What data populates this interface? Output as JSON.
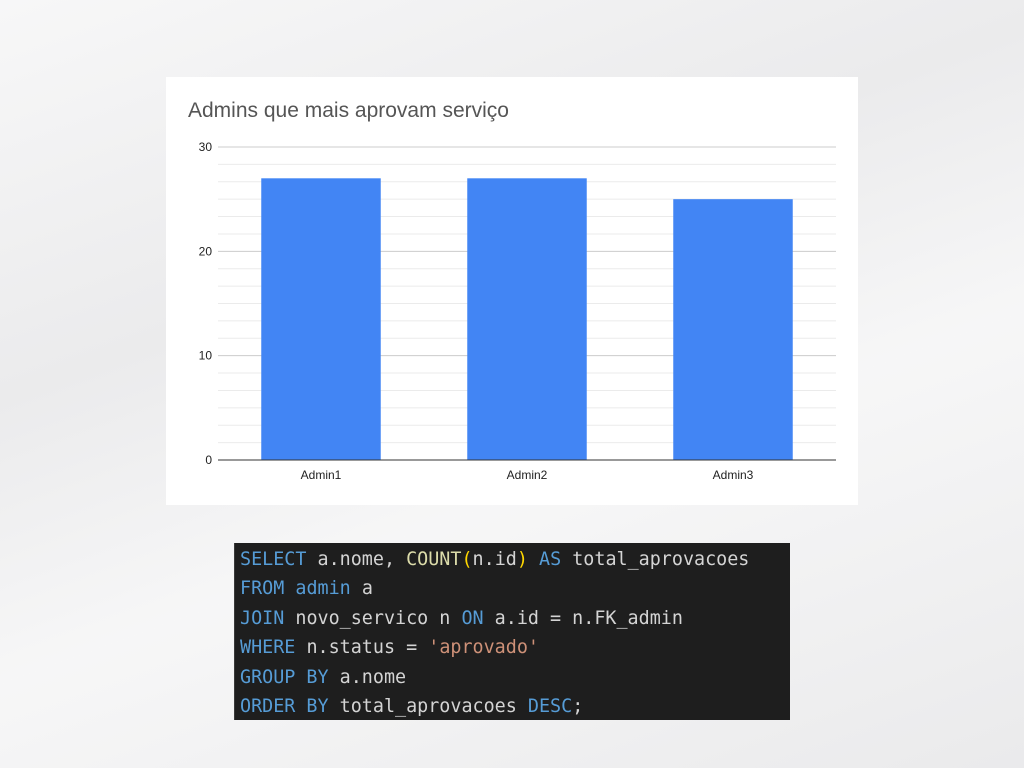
{
  "chart_data": {
    "type": "bar",
    "title": "Admins que mais aprovam serviço",
    "categories": [
      "Admin1",
      "Admin2",
      "Admin3"
    ],
    "values": [
      27,
      27,
      25
    ],
    "ylim": [
      0,
      30
    ],
    "yticks": [
      0,
      10,
      20,
      30
    ],
    "xlabel": "",
    "ylabel": "",
    "grid": true,
    "bar_color": "#4285f4"
  },
  "code": {
    "lines": [
      [
        {
          "t": "SELECT",
          "c": "kw"
        },
        {
          "t": " a.nome, ",
          "c": "id"
        },
        {
          "t": "COUNT",
          "c": "fn"
        },
        {
          "t": "(",
          "c": "paren"
        },
        {
          "t": "n.id",
          "c": "id"
        },
        {
          "t": ")",
          "c": "paren"
        },
        {
          "t": " ",
          "c": "id"
        },
        {
          "t": "AS",
          "c": "kw"
        },
        {
          "t": " total_aprovacoes",
          "c": "id"
        }
      ],
      [
        {
          "t": "FROM",
          "c": "kw"
        },
        {
          "t": " ",
          "c": "id"
        },
        {
          "t": "admin",
          "c": "kw"
        },
        {
          "t": " a",
          "c": "id"
        }
      ],
      [
        {
          "t": "JOIN",
          "c": "kw"
        },
        {
          "t": " novo_servico n ",
          "c": "id"
        },
        {
          "t": "ON",
          "c": "kw"
        },
        {
          "t": " a.id = n.FK_admin",
          "c": "id"
        }
      ],
      [
        {
          "t": "WHERE",
          "c": "kw"
        },
        {
          "t": " n.status = ",
          "c": "id"
        },
        {
          "t": "'aprovado'",
          "c": "str"
        }
      ],
      [
        {
          "t": "GROUP BY",
          "c": "kw"
        },
        {
          "t": " a.nome",
          "c": "id"
        }
      ],
      [
        {
          "t": "ORDER BY",
          "c": "kw"
        },
        {
          "t": " total_aprovacoes ",
          "c": "id"
        },
        {
          "t": "DESC",
          "c": "kw"
        },
        {
          "t": ";",
          "c": "id"
        }
      ]
    ]
  }
}
